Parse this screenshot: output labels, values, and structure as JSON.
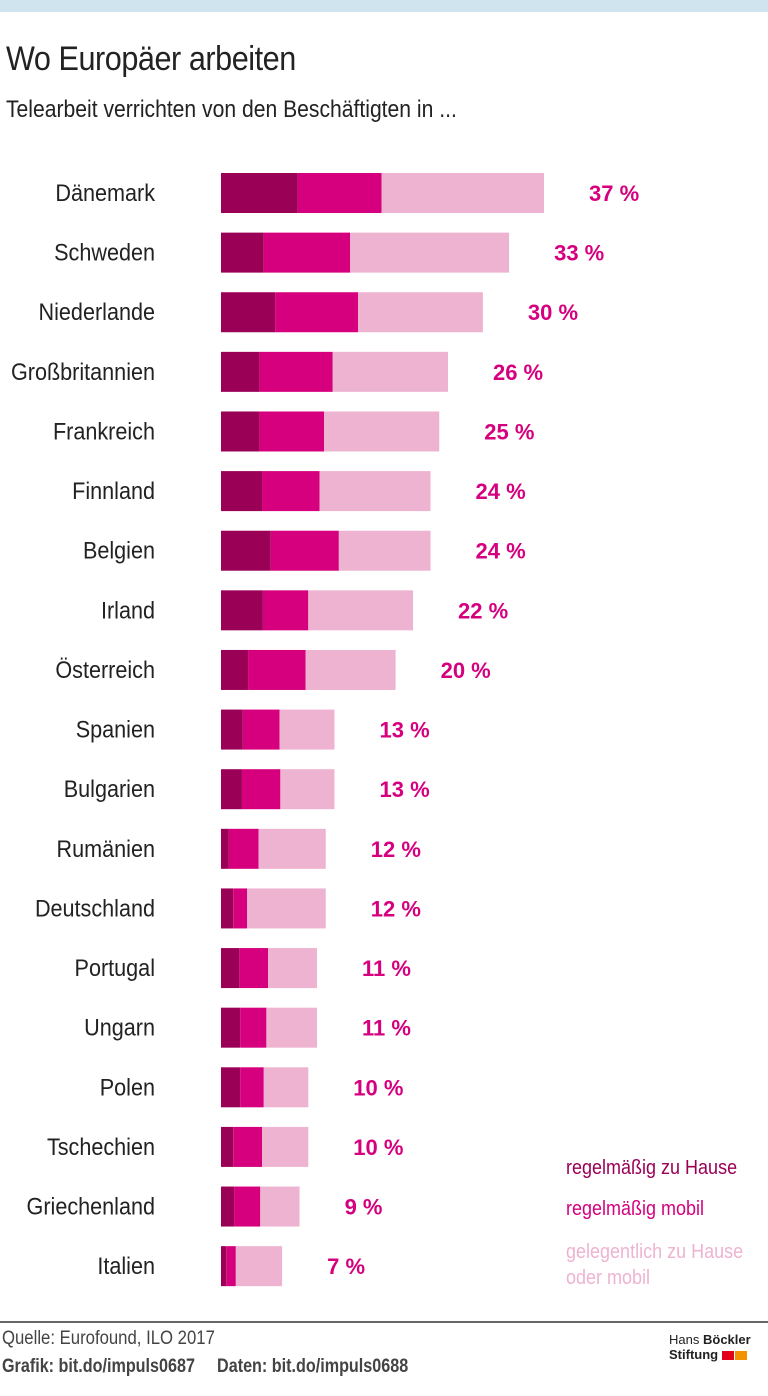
{
  "title": "Wo Europäer arbeiten",
  "subtitle": "Telearbeit verrichten von den Beschäftigten in ...",
  "colors": {
    "regular_home": "#9b0057",
    "regular_mobile": "#d6007f",
    "occasional": "#eeb3d0",
    "label": "#d6007f",
    "top_band": "#cfe4ee"
  },
  "chart_data": {
    "type": "bar",
    "orientation": "horizontal",
    "stacked": true,
    "categories": [
      "Dänemark",
      "Schweden",
      "Niederlande",
      "Großbritannien",
      "Frankreich",
      "Finnland",
      "Belgien",
      "Irland",
      "Österreich",
      "Spanien",
      "Bulgarien",
      "Rumänien",
      "Deutschland",
      "Portugal",
      "Ungarn",
      "Polen",
      "Tschechien",
      "Griechenland",
      "Italien"
    ],
    "series": [
      {
        "name": "regelmäßig zu Hause",
        "values": [
          8.8,
          4.9,
          6.2,
          4.4,
          4.4,
          4.7,
          5.7,
          4.8,
          3.1,
          2.5,
          2.4,
          0.9,
          1.4,
          2.1,
          2.2,
          2.2,
          1.4,
          1.5,
          0.6
        ]
      },
      {
        "name": "regelmäßig mobil",
        "values": [
          9.6,
          9.9,
          9.5,
          8.4,
          7.4,
          6.6,
          7.8,
          5.2,
          6.6,
          4.2,
          4.4,
          3.4,
          1.6,
          3.3,
          3.0,
          2.7,
          3.3,
          3.0,
          1.1
        ]
      },
      {
        "name": "gelegentlich zu Hause oder mobil",
        "values": [
          18.6,
          18.2,
          14.3,
          13.2,
          13.2,
          12.7,
          10.5,
          12.0,
          10.3,
          6.3,
          6.2,
          7.7,
          9.0,
          5.6,
          5.8,
          5.1,
          5.3,
          4.5,
          5.3
        ]
      }
    ],
    "totals": [
      37,
      33,
      30,
      26,
      25,
      24,
      24,
      22,
      20,
      13,
      13,
      12,
      12,
      11,
      11,
      10,
      10,
      9,
      7
    ],
    "data_labels": [
      "37 %",
      "33 %",
      "30 %",
      "26 %",
      "25 %",
      "24 %",
      "24 %",
      "22 %",
      "20 %",
      "13 %",
      "13 %",
      "12 %",
      "12 %",
      "11 %",
      "11 %",
      "10 %",
      "10 %",
      "9 %",
      "7 %"
    ],
    "xlim": [
      0,
      37
    ],
    "grid": false,
    "legend_position": "bottom-right"
  },
  "legend": {
    "regular_home": "regelmäßig zu Hause",
    "regular_mobile": "regelmäßig mobil",
    "occasional_line1": "gelegentlich zu Hause",
    "occasional_line2": "oder mobil"
  },
  "footer": {
    "source": "Quelle: Eurofound, ILO 2017",
    "grafik": "Grafik: bit.do/impuls0687",
    "daten": "Daten: bit.do/impuls0688",
    "logo_line1_a": "Hans",
    "logo_line1_b": "Böckler",
    "logo_line2": "Stiftung"
  }
}
